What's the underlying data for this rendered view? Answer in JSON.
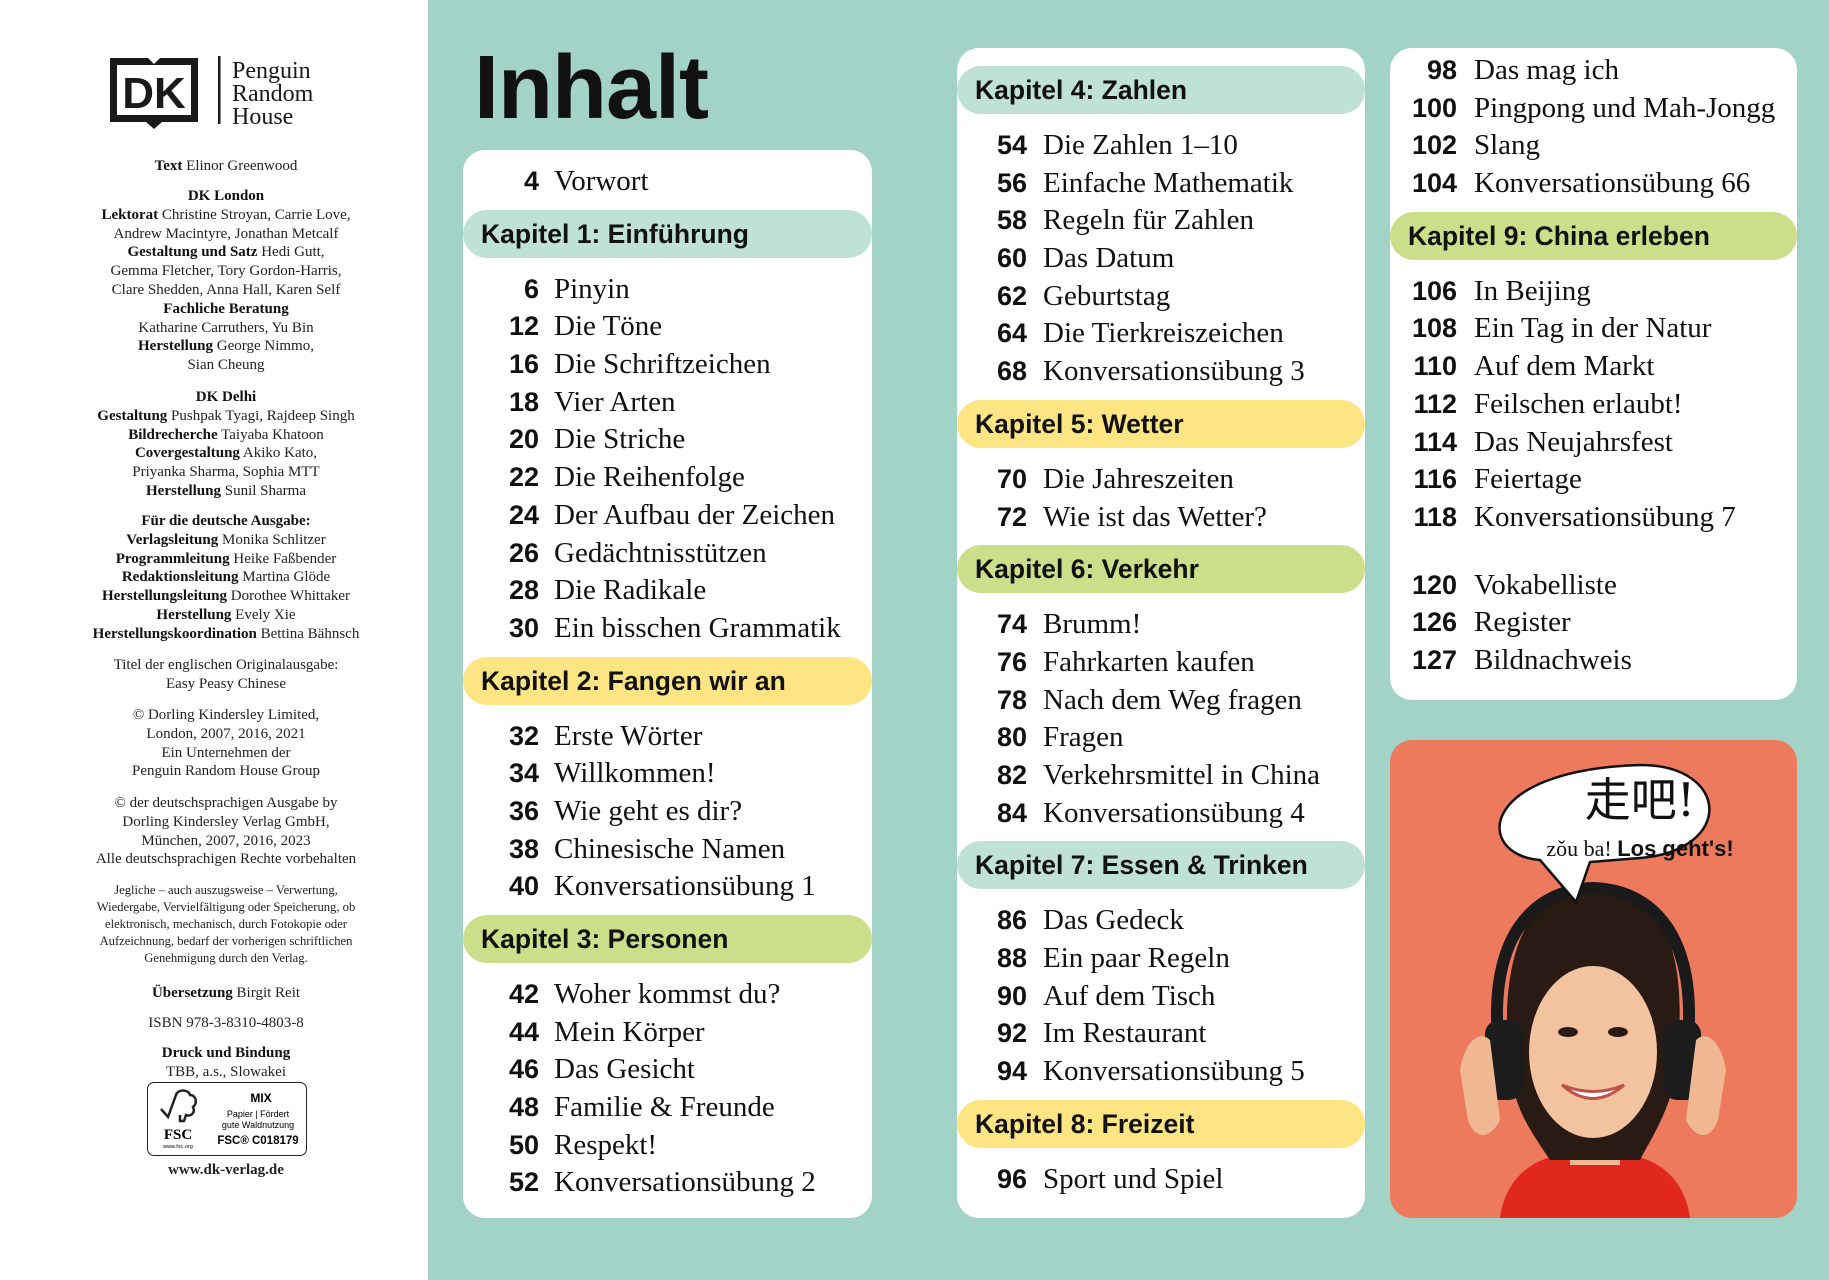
{
  "imprint": {
    "logo": {
      "dk": "DK",
      "prh": [
        "Penguin",
        "Random",
        "House"
      ]
    },
    "groups": [
      {
        "lines": [
          {
            "b": "Text",
            "t": "Elinor Greenwood"
          }
        ]
      },
      {
        "lines": [
          {
            "b": "DK London",
            "t": ""
          },
          {
            "b": "Lektorat",
            "t": "Christine Stroyan, Carrie Love,"
          },
          {
            "b": "",
            "t": "Andrew Macintyre, Jonathan Metcalf"
          },
          {
            "b": "Gestaltung und Satz",
            "t": "Hedi Gutt,"
          },
          {
            "b": "",
            "t": "Gemma Fletcher, Tory Gordon-Harris,"
          },
          {
            "b": "",
            "t": "Clare Shedden, Anna Hall, Karen Self"
          },
          {
            "b": "Fachliche Beratung",
            "t": ""
          },
          {
            "b": "",
            "t": "Katharine Carruthers, Yu Bin"
          },
          {
            "b": "Herstellung",
            "t": "George Nimmo,"
          },
          {
            "b": "",
            "t": "Sian Cheung"
          }
        ]
      },
      {
        "lines": [
          {
            "b": "DK Delhi",
            "t": ""
          },
          {
            "b": "Gestaltung",
            "t": "Pushpak Tyagi, Rajdeep Singh"
          },
          {
            "b": "Bildrecherche",
            "t": "Taiyaba Khatoon"
          },
          {
            "b": "Covergestaltung",
            "t": "Akiko Kato,"
          },
          {
            "b": "",
            "t": "Priyanka Sharma, Sophia MTT"
          },
          {
            "b": "Herstellung",
            "t": "Sunil Sharma"
          }
        ]
      },
      {
        "lines": [
          {
            "b": "Für die deutsche Ausgabe:",
            "t": ""
          },
          {
            "b": "Verlagsleitung",
            "t": "Monika Schlitzer"
          },
          {
            "b": "Programmleitung",
            "t": "Heike Faßbender"
          },
          {
            "b": "Redaktionsleitung",
            "t": "Martina Glöde"
          },
          {
            "b": "Herstellungsleitung",
            "t": "Dorothee Whittaker"
          },
          {
            "b": "Herstellung",
            "t": "Evely Xie"
          },
          {
            "b": "Herstellungskoordination",
            "t": "Bettina Bähnsch"
          }
        ]
      },
      {
        "lines": [
          {
            "b": "",
            "t": "Titel der englischen Originalausgabe:"
          },
          {
            "b": "",
            "t": "Easy Peasy Chinese"
          }
        ]
      },
      {
        "lines": [
          {
            "b": "",
            "t": "© Dorling Kindersley Limited,"
          },
          {
            "b": "",
            "t": "London, 2007, 2016, 2021"
          },
          {
            "b": "",
            "t": "Ein Unternehmen der"
          },
          {
            "b": "",
            "t": "Penguin Random House Group"
          }
        ]
      },
      {
        "lines": [
          {
            "b": "",
            "t": "© der deutschsprachigen Ausgabe by"
          },
          {
            "b": "",
            "t": "Dorling Kindersley Verlag GmbH,"
          },
          {
            "b": "",
            "t": "München, 2007, 2016, 2023"
          },
          {
            "b": "",
            "t": "Alle deutschsprachigen Rechte vorbehalten"
          }
        ]
      },
      {
        "small": true,
        "lines": [
          {
            "b": "",
            "t": "Jegliche – auch auszugsweise – Verwertung,"
          },
          {
            "b": "",
            "t": "Wiedergabe, Vervielfältigung oder Speicherung, ob"
          },
          {
            "b": "",
            "t": "elektronisch, mechanisch, durch Fotokopie oder"
          },
          {
            "b": "",
            "t": "Aufzeichnung, bedarf der vorherigen schriftlichen"
          },
          {
            "b": "",
            "t": "Genehmigung durch den Verlag."
          }
        ]
      },
      {
        "lines": [
          {
            "b": "Übersetzung",
            "t": "Birgit Reit"
          }
        ]
      },
      {
        "lines": [
          {
            "b": "",
            "t": "ISBN 978-3-8310-4803-8"
          }
        ]
      },
      {
        "lines": [
          {
            "b": "Druck und Bindung",
            "t": ""
          },
          {
            "b": "",
            "t": "TBB, a.s., Slowakei"
          }
        ]
      }
    ],
    "fsc": {
      "mix": "MIX",
      "paper_1": "Papier | Fördert",
      "paper_2": "gute Waldnutzung",
      "code": "FSC® C018179",
      "logo_text": "FSC",
      "url": "www.fsc.org"
    },
    "website": "www.dk-verlag.de"
  },
  "toc": {
    "title": "Inhalt",
    "colors": {
      "background": "#a2d3c6",
      "mint": "#c0e1d5",
      "yellow": "#fde584",
      "green": "#cbdf8a",
      "photo": "#ee7a5d"
    },
    "cards": [
      {
        "items": [
          {
            "page": "4",
            "title": "Vorwort"
          },
          {
            "header": "Kapitel 1: Einführung",
            "color": "#c0e1d5"
          },
          {
            "page": "6",
            "title": "Pinyin"
          },
          {
            "page": "12",
            "title": "Die Töne"
          },
          {
            "page": "16",
            "title": "Die Schriftzeichen"
          },
          {
            "page": "18",
            "title": "Vier Arten"
          },
          {
            "page": "20",
            "title": "Die Striche"
          },
          {
            "page": "22",
            "title": "Die Reihenfolge"
          },
          {
            "page": "24",
            "title": "Der Aufbau der Zeichen"
          },
          {
            "page": "26",
            "title": "Gedächtnisstützen"
          },
          {
            "page": "28",
            "title": "Die Radikale"
          },
          {
            "page": "30",
            "title": "Ein bisschen Grammatik"
          },
          {
            "header": "Kapitel 2: Fangen wir an",
            "color": "#fde584"
          },
          {
            "page": "32",
            "title": "Erste Wörter"
          },
          {
            "page": "34",
            "title": "Willkommen!"
          },
          {
            "page": "36",
            "title": "Wie geht es dir?"
          },
          {
            "page": "38",
            "title": "Chinesische Namen"
          },
          {
            "page": "40",
            "title": "Konversationsübung 1"
          },
          {
            "header": "Kapitel 3: Personen",
            "color": "#cbdf8a"
          },
          {
            "page": "42",
            "title": "Woher kommst du?"
          },
          {
            "page": "44",
            "title": "Mein Körper"
          },
          {
            "page": "46",
            "title": "Das Gesicht"
          },
          {
            "page": "48",
            "title": "Familie & Freunde"
          },
          {
            "page": "50",
            "title": "Respekt!"
          },
          {
            "page": "52",
            "title": "Konversationsübung 2"
          }
        ]
      },
      {
        "items": [
          {
            "header": "Kapitel 4: Zahlen",
            "color": "#c0e1d5"
          },
          {
            "page": "54",
            "title": "Die Zahlen 1–10"
          },
          {
            "page": "56",
            "title": "Einfache Mathematik"
          },
          {
            "page": "58",
            "title": "Regeln für Zahlen"
          },
          {
            "page": "60",
            "title": "Das Datum"
          },
          {
            "page": "62",
            "title": "Geburtstag"
          },
          {
            "page": "64",
            "title": "Die Tierkreiszeichen"
          },
          {
            "page": "68",
            "title": "Konversationsübung 3"
          },
          {
            "header": "Kapitel 5: Wetter",
            "color": "#fde584"
          },
          {
            "page": "70",
            "title": "Die Jahreszeiten"
          },
          {
            "page": "72",
            "title": "Wie ist das Wetter?"
          },
          {
            "header": "Kapitel 6: Verkehr",
            "color": "#cbdf8a"
          },
          {
            "page": "74",
            "title": "Brumm!"
          },
          {
            "page": "76",
            "title": "Fahrkarten kaufen"
          },
          {
            "page": "78",
            "title": "Nach dem Weg fragen"
          },
          {
            "page": "80",
            "title": "Fragen"
          },
          {
            "page": "82",
            "title": "Verkehrsmittel in China"
          },
          {
            "page": "84",
            "title": "Konversationsübung 4"
          },
          {
            "header": "Kapitel 7: Essen & Trinken",
            "color": "#c0e1d5"
          },
          {
            "page": "86",
            "title": "Das Gedeck"
          },
          {
            "page": "88",
            "title": "Ein paar Regeln"
          },
          {
            "page": "90",
            "title": "Auf dem Tisch"
          },
          {
            "page": "92",
            "title": "Im Restaurant"
          },
          {
            "page": "94",
            "title": "Konversationsübung 5"
          },
          {
            "header": "Kapitel 8: Freizeit",
            "color": "#fde584"
          },
          {
            "page": "96",
            "title": "Sport und Spiel"
          }
        ]
      },
      {
        "items": [
          {
            "page": "98",
            "title": "Das mag ich"
          },
          {
            "page": "100",
            "title": "Pingpong und Mah-Jongg"
          },
          {
            "page": "102",
            "title": "Slang"
          },
          {
            "page": "104",
            "title": "Konversationsübung 66"
          },
          {
            "header": "Kapitel 9: China erleben",
            "color": "#cbdf8a"
          },
          {
            "page": "106",
            "title": "In Beijing"
          },
          {
            "page": "108",
            "title": "Ein Tag in der Natur"
          },
          {
            "page": "110",
            "title": "Auf dem Markt"
          },
          {
            "page": "112",
            "title": "Feilschen erlaubt!"
          },
          {
            "page": "114",
            "title": "Das Neujahrsfest"
          },
          {
            "page": "116",
            "title": "Feiertage"
          },
          {
            "page": "118",
            "title": "Konversationsübung 7"
          }
        ],
        "appendix": [
          {
            "page": "120",
            "title": "Vokabelliste"
          },
          {
            "page": "126",
            "title": "Register"
          },
          {
            "page": "127",
            "title": "Bildnachweis"
          }
        ]
      }
    ]
  },
  "photo": {
    "speech_chinese": "走吧!",
    "speech_pinyin": "zǒu ba!",
    "speech_german": "Los geht's!"
  }
}
